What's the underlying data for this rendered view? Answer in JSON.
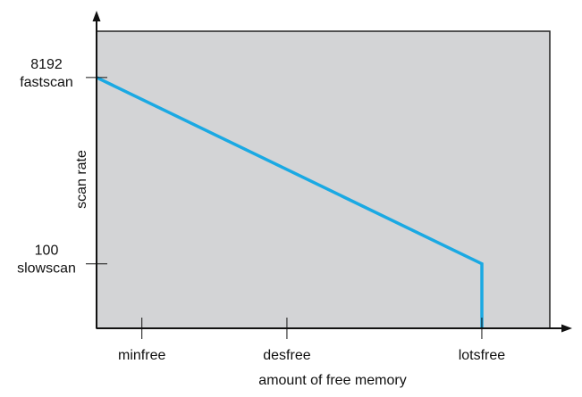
{
  "chart_data": {
    "type": "line",
    "title": "",
    "xlabel": "amount of free memory",
    "ylabel": "scan rate",
    "x_ticks": [
      {
        "label": "minfree",
        "value": 0.1
      },
      {
        "label": "desfree",
        "value": 0.42
      },
      {
        "label": "lotsfree",
        "value": 0.85
      }
    ],
    "y_ticks": [
      {
        "value_label": "8192",
        "name_label": "fastscan",
        "value": 8192
      },
      {
        "value_label": "100",
        "name_label": "slowscan",
        "value": 100
      }
    ],
    "series": [
      {
        "points": [
          {
            "x": 0,
            "y": 8192
          },
          {
            "x": 0.85,
            "y": 100
          },
          {
            "x": 0.85,
            "y": -2700
          }
        ]
      }
    ],
    "xlim": [
      0,
      1
    ],
    "ylim": [
      -2700,
      10200
    ],
    "grid": false,
    "legend": "none",
    "colors": {
      "plot_background": "#d3d4d6",
      "plot_border": "#222222",
      "line": "#1aa9e3",
      "axis": "#111111"
    }
  }
}
